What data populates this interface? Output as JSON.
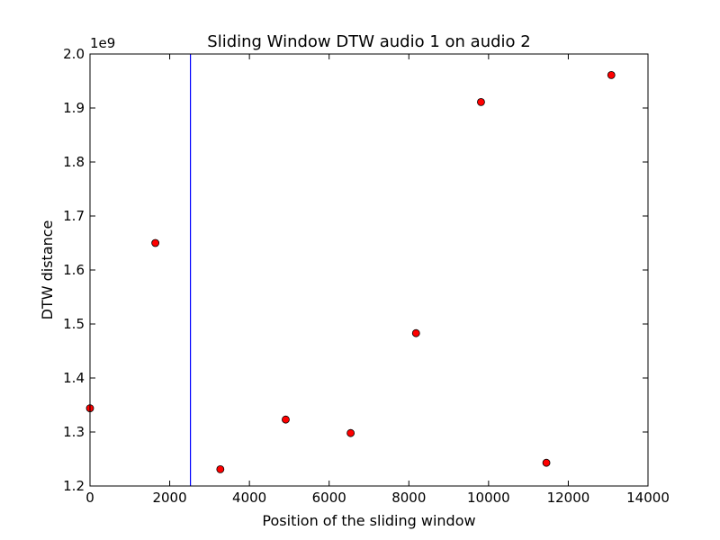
{
  "chart_data": {
    "type": "scatter",
    "title": "Sliding Window DTW audio 1 on audio 2",
    "xlabel": "Position of the sliding window",
    "ylabel": "DTW distance",
    "y_offset_label": "1e9",
    "y_scale": 1000000000,
    "xlim": [
      0,
      14000
    ],
    "ylim": [
      1200000000,
      2000000000
    ],
    "x_ticks": [
      0,
      2000,
      4000,
      6000,
      8000,
      10000,
      12000,
      14000
    ],
    "x_tick_labels": [
      "0",
      "2000",
      "4000",
      "6000",
      "8000",
      "10000",
      "12000",
      "14000"
    ],
    "y_ticks": [
      1200000000,
      1300000000,
      1400000000,
      1500000000,
      1600000000,
      1700000000,
      1800000000,
      1900000000,
      2000000000
    ],
    "y_tick_labels": [
      "1.2",
      "1.3",
      "1.4",
      "1.5",
      "1.6",
      "1.7",
      "1.8",
      "1.9",
      "2.0"
    ],
    "grid": false,
    "series": [
      {
        "marker_color": "#ff0000",
        "points": [
          {
            "x": 0,
            "y": 1344000000
          },
          {
            "x": 1640,
            "y": 1650000000
          },
          {
            "x": 3270,
            "y": 1231000000
          },
          {
            "x": 4910,
            "y": 1323000000
          },
          {
            "x": 6540,
            "y": 1298000000
          },
          {
            "x": 8180,
            "y": 1483000000
          },
          {
            "x": 9810,
            "y": 1911000000
          },
          {
            "x": 11450,
            "y": 1243000000
          },
          {
            "x": 13080,
            "y": 1961000000
          }
        ]
      }
    ],
    "vertical_lines": [
      {
        "x": 2520,
        "color": "#0000ff"
      }
    ]
  }
}
